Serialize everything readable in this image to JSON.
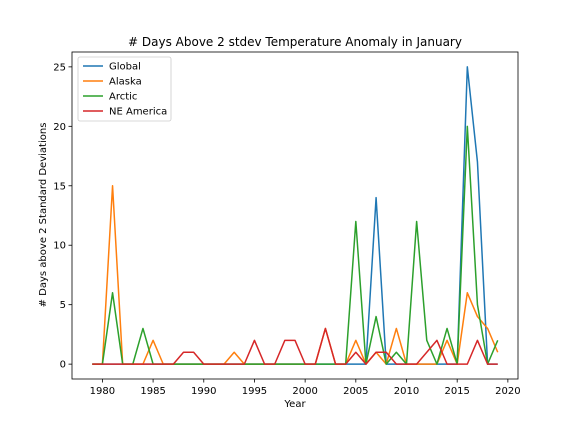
{
  "chart_data": {
    "type": "line",
    "title": "# Days Above 2 stdev Temperature Anomaly in January",
    "xlabel": "Year",
    "ylabel": "# Days above 2 Standard Deviations",
    "xlim": [
      1977.0,
      2021.0
    ],
    "ylim": [
      -1.25,
      26.25
    ],
    "xticks": [
      1980,
      1985,
      1990,
      1995,
      2000,
      2005,
      2010,
      2015,
      2020
    ],
    "yticks": [
      0,
      5,
      10,
      15,
      20,
      25
    ],
    "grid": false,
    "legend_position": "top-left",
    "x": [
      1979,
      1980,
      1981,
      1982,
      1983,
      1984,
      1985,
      1986,
      1987,
      1988,
      1989,
      1990,
      1991,
      1992,
      1993,
      1994,
      1995,
      1996,
      1997,
      1998,
      1999,
      2000,
      2001,
      2002,
      2003,
      2004,
      2005,
      2006,
      2007,
      2008,
      2009,
      2010,
      2011,
      2012,
      2013,
      2014,
      2015,
      2016,
      2017,
      2018,
      2019
    ],
    "series": [
      {
        "name": "Global",
        "color": "#1f77b4",
        "values": [
          0,
          0,
          0,
          0,
          0,
          0,
          0,
          0,
          0,
          0,
          0,
          0,
          0,
          0,
          0,
          0,
          0,
          0,
          0,
          0,
          0,
          0,
          0,
          0,
          0,
          0,
          0,
          0,
          14,
          0,
          0,
          0,
          0,
          0,
          0,
          0,
          0,
          25,
          17,
          0,
          0
        ]
      },
      {
        "name": "Alaska",
        "color": "#ff7f0e",
        "values": [
          0,
          0,
          15,
          0,
          0,
          0,
          2,
          0,
          0,
          0,
          0,
          0,
          0,
          0,
          1,
          0,
          0,
          0,
          0,
          0,
          0,
          0,
          0,
          3,
          0,
          0,
          2,
          0,
          1,
          0,
          3,
          0,
          0,
          0,
          0,
          2,
          0,
          6,
          4,
          3,
          1
        ]
      },
      {
        "name": "Arctic",
        "color": "#2ca02c",
        "values": [
          0,
          0,
          6,
          0,
          0,
          3,
          0,
          0,
          0,
          0,
          0,
          0,
          0,
          0,
          0,
          0,
          0,
          0,
          0,
          0,
          0,
          0,
          0,
          0,
          0,
          0,
          12,
          0,
          4,
          0,
          1,
          0,
          12,
          2,
          0,
          3,
          0,
          20,
          5,
          0,
          2
        ]
      },
      {
        "name": "NE America",
        "color": "#d62728",
        "values": [
          0,
          0,
          0,
          0,
          0,
          0,
          0,
          0,
          0,
          1,
          1,
          0,
          0,
          0,
          0,
          0,
          2,
          0,
          0,
          2,
          2,
          0,
          0,
          3,
          0,
          0,
          1,
          0,
          1,
          1,
          0,
          0,
          0,
          1,
          2,
          0,
          0,
          0,
          2,
          0,
          0
        ]
      }
    ]
  }
}
